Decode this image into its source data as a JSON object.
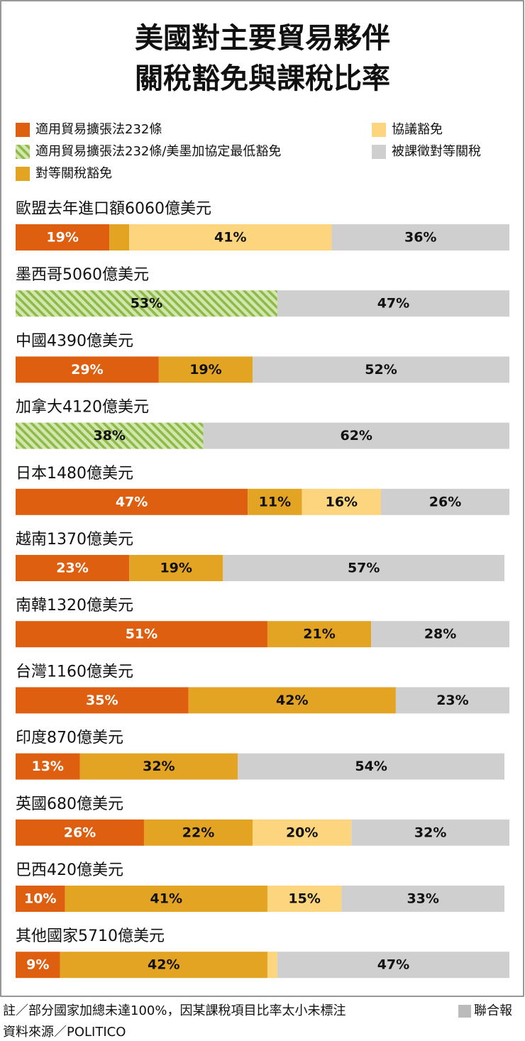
{
  "chart_data": {
    "type": "stacked-bar",
    "title": [
      "美國對主要貿易夥伴",
      "關稅豁免與課稅比率"
    ],
    "categories": [
      "歐盟去年進口額6060億美元",
      "墨西哥5060億美元",
      "中國4390億美元",
      "加拿大4120億美元",
      "日本1480億美元",
      "越南1370億美元",
      "南韓1320億美元",
      "台灣1160億美元",
      "印度870億美元",
      "英國680億美元",
      "巴西420億美元",
      "其他國家5710億美元"
    ],
    "xlim": [
      0,
      100
    ],
    "series": [
      {
        "name": "適用貿易擴張法232條",
        "color": "#df5f10",
        "values": [
          19,
          null,
          29,
          null,
          47,
          23,
          51,
          35,
          13,
          26,
          10,
          9
        ],
        "value_labels": [
          "19%",
          null,
          "29%",
          null,
          "47%",
          "23%",
          "51%",
          "35%",
          "13%",
          "26%",
          "10%",
          "9%"
        ]
      },
      {
        "name": "適用貿易擴張法232條/美墨加協定最低豁免",
        "color": "#8dbb4a",
        "values": [
          null,
          53,
          null,
          38,
          null,
          null,
          null,
          null,
          null,
          null,
          null,
          null
        ],
        "value_labels": [
          null,
          "53%",
          null,
          "38%",
          null,
          null,
          null,
          null,
          null,
          null,
          null,
          null
        ]
      },
      {
        "name": "對等關稅豁免",
        "color": "#e3a424",
        "values": [
          4,
          null,
          19,
          null,
          11,
          19,
          21,
          42,
          32,
          22,
          41,
          42
        ],
        "value_labels": [
          null,
          null,
          "19%",
          null,
          "11%",
          "19%",
          "21%",
          "42%",
          "32%",
          "22%",
          "41%",
          "42%"
        ]
      },
      {
        "name": "協議豁免",
        "color": "#fcd57e",
        "values": [
          41,
          null,
          null,
          null,
          16,
          null,
          null,
          null,
          null,
          20,
          15,
          2
        ],
        "value_labels": [
          "41%",
          null,
          null,
          null,
          "16%",
          null,
          null,
          null,
          null,
          "20%",
          "15%",
          null
        ]
      },
      {
        "name": "被課徵對等關稅",
        "color": "#cfcfcf",
        "values": [
          36,
          47,
          52,
          62,
          26,
          57,
          28,
          23,
          54,
          32,
          33,
          47
        ],
        "value_labels": [
          "36%",
          "47%",
          "52%",
          "62%",
          "26%",
          "57%",
          "28%",
          "23%",
          "54%",
          "32%",
          "33%",
          "47%"
        ]
      }
    ],
    "note": "註／部分國家加總未達100%，因某課稅項目比率太小未標注",
    "credit": "聯合報",
    "source": "資料來源／POLITICO"
  }
}
